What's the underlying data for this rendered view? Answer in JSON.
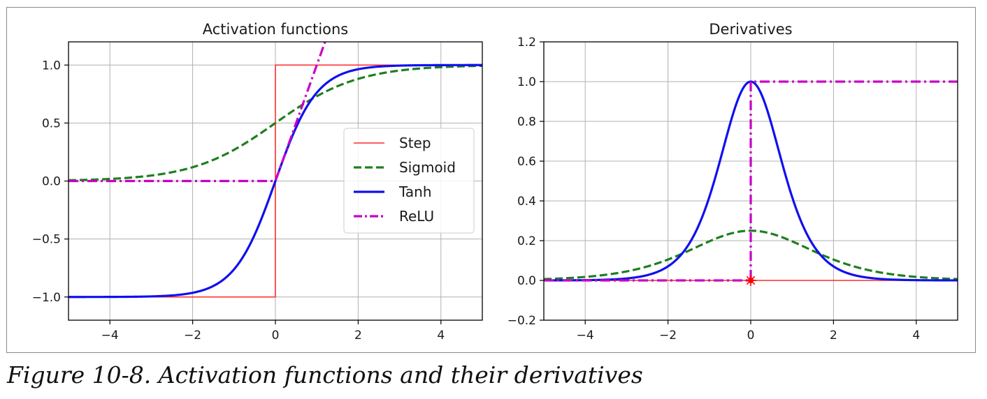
{
  "caption": "Figure 10-8. Activation functions and their derivatives",
  "chart_data": [
    {
      "type": "line",
      "title": "Activation functions",
      "xlabel": "",
      "ylabel": "",
      "xlim": [
        -5,
        5
      ],
      "ylim": [
        -1.2,
        1.2
      ],
      "xticks": [
        -4,
        -2,
        0,
        2,
        4
      ],
      "xtick_labels": [
        "−4",
        "−2",
        "0",
        "2",
        "4"
      ],
      "yticks": [
        -1.0,
        -0.5,
        0.0,
        0.5,
        1.0
      ],
      "ytick_labels": [
        "−1.0",
        "−0.5",
        "0.0",
        "0.5",
        "1.0"
      ],
      "grid": true,
      "legend": {
        "placement": "center-right"
      },
      "series": [
        {
          "name": "Step",
          "color": "#ff2a2a",
          "style": "solid-thin",
          "x": [
            -5,
            -0.001,
            0,
            5
          ],
          "y": [
            -1,
            -1,
            1,
            1
          ]
        },
        {
          "name": "Sigmoid",
          "color": "#1f7f1f",
          "style": "dashed",
          "x": [
            -5,
            -4,
            -3,
            -2,
            -1,
            0,
            1,
            2,
            3,
            4,
            5
          ],
          "y": [
            0.007,
            0.018,
            0.047,
            0.119,
            0.269,
            0.5,
            0.731,
            0.881,
            0.953,
            0.982,
            0.993
          ]
        },
        {
          "name": "Tanh",
          "color": "#1010ee",
          "style": "solid",
          "x": [
            -5,
            -4,
            -3,
            -2,
            -1.5,
            -1,
            -0.5,
            0,
            0.5,
            1,
            1.5,
            2,
            3,
            4,
            5
          ],
          "y": [
            -1.0,
            -0.999,
            -0.995,
            -0.964,
            -0.905,
            -0.762,
            -0.462,
            0,
            0.462,
            0.762,
            0.905,
            0.964,
            0.995,
            0.999,
            1.0
          ]
        },
        {
          "name": "ReLU",
          "color": "#c800c8",
          "style": "dashdot",
          "x": [
            -5,
            0,
            1.2
          ],
          "y": [
            0,
            0,
            1.2
          ]
        }
      ]
    },
    {
      "type": "line",
      "title": "Derivatives",
      "xlabel": "",
      "ylabel": "",
      "xlim": [
        -5,
        5
      ],
      "ylim": [
        -0.2,
        1.2
      ],
      "xticks": [
        -4,
        -2,
        0,
        2,
        4
      ],
      "xtick_labels": [
        "−4",
        "−2",
        "0",
        "2",
        "4"
      ],
      "yticks": [
        -0.2,
        0.0,
        0.2,
        0.4,
        0.6,
        0.8,
        1.0,
        1.2
      ],
      "ytick_labels": [
        "−0.2",
        "0.0",
        "0.2",
        "0.4",
        "0.6",
        "0.8",
        "1.0",
        "1.2"
      ],
      "grid": true,
      "series": [
        {
          "name": "Step",
          "color": "#ff2a2a",
          "style": "solid-thin",
          "x": [
            -5,
            5
          ],
          "y": [
            0,
            0
          ]
        },
        {
          "name": "Sigmoid",
          "color": "#1f7f1f",
          "style": "dashed",
          "x": [
            -5,
            -4,
            -3,
            -2,
            -1,
            0,
            1,
            2,
            3,
            4,
            5
          ],
          "y": [
            0.007,
            0.018,
            0.045,
            0.105,
            0.197,
            0.25,
            0.197,
            0.105,
            0.045,
            0.018,
            0.007
          ]
        },
        {
          "name": "Tanh",
          "color": "#1010ee",
          "style": "solid",
          "x": [
            -5,
            -4,
            -3,
            -2,
            -1.5,
            -1,
            -0.5,
            0,
            0.5,
            1,
            1.5,
            2,
            3,
            4,
            5
          ],
          "y": [
            0.0,
            0.001,
            0.01,
            0.071,
            0.181,
            0.42,
            0.786,
            1.0,
            0.786,
            0.42,
            0.181,
            0.071,
            0.01,
            0.001,
            0.0
          ]
        },
        {
          "name": "ReLU",
          "color": "#c800c8",
          "style": "dashdot",
          "x": [
            -5,
            0,
            0,
            5
          ],
          "y": [
            0,
            0,
            1,
            1
          ]
        }
      ],
      "annotations": [
        {
          "type": "point",
          "marker": "star",
          "x": 0,
          "y": 0,
          "color": "#ff0000"
        }
      ]
    }
  ]
}
